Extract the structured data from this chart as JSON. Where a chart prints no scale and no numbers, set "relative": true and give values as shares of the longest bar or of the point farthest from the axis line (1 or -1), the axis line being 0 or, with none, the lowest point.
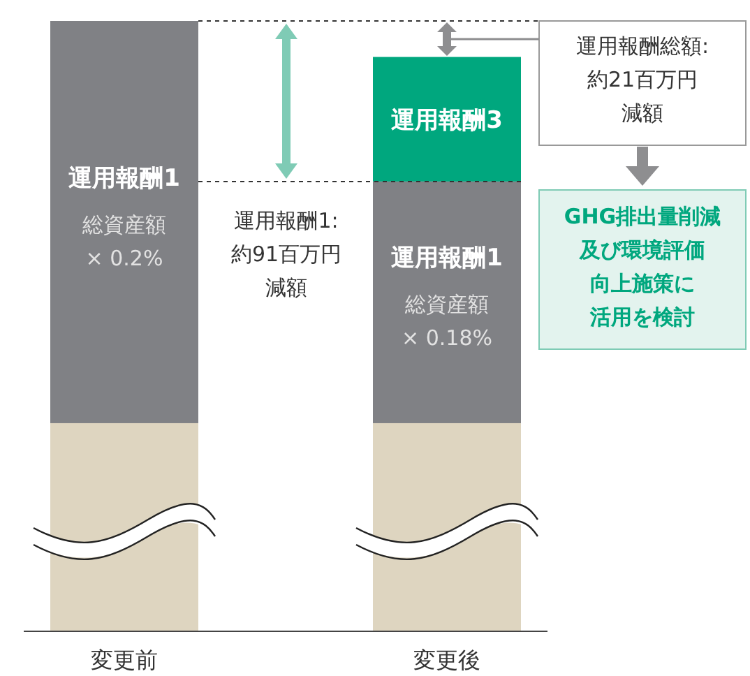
{
  "chart_data": {
    "type": "bar",
    "stacked": true,
    "relative": true,
    "categories": [
      "変更前",
      "変更後"
    ],
    "series": [
      {
        "color": "#ded5c0",
        "values": [
          0.341,
          0.341
        ]
      },
      {
        "name": "運用報酬1",
        "color": "#808185",
        "values": [
          0.659,
          0.396
        ]
      },
      {
        "name": "運用報酬3",
        "color": "#00a77e",
        "values": [
          null,
          0.204
        ]
      }
    ],
    "annotations": [
      "総資産額",
      "× 0.2%",
      "総資産額",
      "× 0.18%",
      "運用報酬1:",
      "約91百万円",
      "減額",
      "運用報酬総額:",
      "約21百万円",
      "減額",
      "GHG排出量削減",
      "及び環境評価",
      "向上施策に",
      "活用を検討"
    ]
  }
}
